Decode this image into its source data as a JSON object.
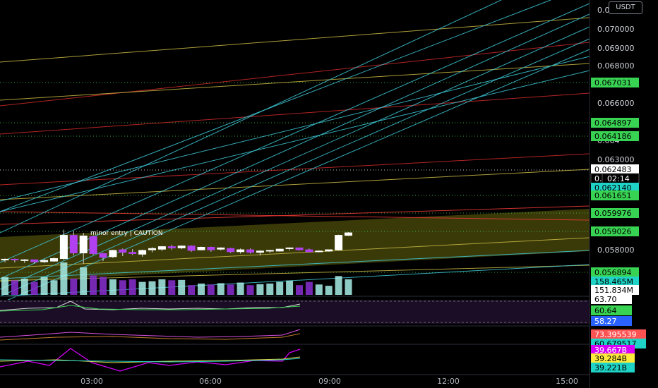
{
  "currency": "USDT",
  "annotation": "minor entry | CAUTION",
  "price_scale": {
    "ticks": [
      "0.0",
      "0.070000",
      "0.069000",
      "0.068000",
      "0.066000",
      "0.064",
      "0.063000",
      "0.058000"
    ],
    "badges": [
      {
        "label": "0.067031",
        "bg": "#39d353",
        "fg": "#000"
      },
      {
        "label": "0.064897",
        "bg": "#39d353",
        "fg": "#000"
      },
      {
        "label": "0.064186",
        "bg": "#39d353",
        "fg": "#000"
      },
      {
        "label": "0.062483",
        "bg": "#ffffff",
        "fg": "#000"
      },
      {
        "label": "0.0",
        "bg": "#000000",
        "fg": "#ffffff"
      },
      {
        "label": "02:14",
        "bg": "#000000",
        "fg": "#ffffff"
      },
      {
        "label": "0.062140",
        "bg": "#1fd3c6",
        "fg": "#000"
      },
      {
        "label": "0.061651",
        "bg": "#39d353",
        "fg": "#000"
      },
      {
        "label": "0.059976",
        "bg": "#39d353",
        "fg": "#000"
      },
      {
        "label": "0.059026",
        "bg": "#39d353",
        "fg": "#000"
      },
      {
        "label": "0.056894",
        "bg": "#39d353",
        "fg": "#000"
      },
      {
        "label": "158.465M",
        "bg": "#1fd3c6",
        "fg": "#000"
      },
      {
        "label": "151.834M",
        "bg": "#ffffff",
        "fg": "#000"
      }
    ]
  },
  "rsi_scale": [
    {
      "label": "63.70",
      "bg": "#ffffff",
      "fg": "#000"
    },
    {
      "label": "60.64",
      "bg": "#39d353",
      "fg": "#000"
    },
    {
      "label": "58.27",
      "bg": "#2962ff",
      "fg": "#fff"
    }
  ],
  "stoch_scale": [
    {
      "label": "73.395539",
      "bg": "#ff5252",
      "fg": "#fff"
    },
    {
      "label": "60.679517",
      "bg": "#1fd3c6",
      "fg": "#000"
    }
  ],
  "lower_scale": [
    {
      "label": "39.667B",
      "bg": "#d500f9",
      "fg": "#fff"
    },
    {
      "label": "39.284B",
      "bg": "#ffeb3b",
      "fg": "#000"
    },
    {
      "label": "39.221B",
      "bg": "#1fd3c6",
      "fg": "#000"
    }
  ],
  "time_axis": [
    "03:00",
    "06:00",
    "09:00",
    "12:00",
    "15:00"
  ],
  "candles": [
    {
      "o": 0.0582,
      "h": 0.0584,
      "l": 0.0578,
      "c": 0.0583
    },
    {
      "o": 0.0583,
      "h": 0.0584,
      "l": 0.0578,
      "c": 0.0582
    },
    {
      "o": 0.0582,
      "h": 0.0583,
      "l": 0.0577,
      "c": 0.0582
    },
    {
      "o": 0.0582,
      "h": 0.0582,
      "l": 0.0576,
      "c": 0.0579
    },
    {
      "o": 0.0579,
      "h": 0.0583,
      "l": 0.0577,
      "c": 0.0581
    },
    {
      "o": 0.058,
      "h": 0.0586,
      "l": 0.0579,
      "c": 0.0584
    },
    {
      "o": 0.0584,
      "h": 0.063,
      "l": 0.0582,
      "c": 0.0621
    },
    {
      "o": 0.0621,
      "h": 0.0628,
      "l": 0.0589,
      "c": 0.0593
    },
    {
      "o": 0.0593,
      "h": 0.0625,
      "l": 0.0576,
      "c": 0.062
    },
    {
      "o": 0.0619,
      "h": 0.0621,
      "l": 0.059,
      "c": 0.0592
    },
    {
      "o": 0.0592,
      "h": 0.0593,
      "l": 0.058,
      "c": 0.0586
    },
    {
      "o": 0.0587,
      "h": 0.0598,
      "l": 0.0585,
      "c": 0.0597
    },
    {
      "o": 0.0598,
      "h": 0.06,
      "l": 0.0588,
      "c": 0.0594
    },
    {
      "o": 0.0594,
      "h": 0.0599,
      "l": 0.059,
      "c": 0.0592
    },
    {
      "o": 0.0591,
      "h": 0.0598,
      "l": 0.0587,
      "c": 0.0597
    },
    {
      "o": 0.0598,
      "h": 0.0602,
      "l": 0.0594,
      "c": 0.06
    },
    {
      "o": 0.0599,
      "h": 0.0604,
      "l": 0.0596,
      "c": 0.0603
    },
    {
      "o": 0.0603,
      "h": 0.0606,
      "l": 0.0598,
      "c": 0.0601
    },
    {
      "o": 0.0601,
      "h": 0.0605,
      "l": 0.0599,
      "c": 0.0604
    },
    {
      "o": 0.0604,
      "h": 0.0605,
      "l": 0.0595,
      "c": 0.0597
    },
    {
      "o": 0.0598,
      "h": 0.0603,
      "l": 0.0597,
      "c": 0.0602
    },
    {
      "o": 0.0602,
      "h": 0.0603,
      "l": 0.0595,
      "c": 0.0598
    },
    {
      "o": 0.0599,
      "h": 0.0602,
      "l": 0.0597,
      "c": 0.0601
    },
    {
      "o": 0.06,
      "h": 0.0601,
      "l": 0.0593,
      "c": 0.0595
    },
    {
      "o": 0.0595,
      "h": 0.06,
      "l": 0.0592,
      "c": 0.0598
    },
    {
      "o": 0.0598,
      "h": 0.06,
      "l": 0.0592,
      "c": 0.0594
    },
    {
      "o": 0.0594,
      "h": 0.0597,
      "l": 0.0589,
      "c": 0.0596
    },
    {
      "o": 0.0596,
      "h": 0.0598,
      "l": 0.0593,
      "c": 0.0597
    },
    {
      "o": 0.0596,
      "h": 0.06,
      "l": 0.0595,
      "c": 0.0599
    },
    {
      "o": 0.06,
      "h": 0.0602,
      "l": 0.0597,
      "c": 0.0601
    },
    {
      "o": 0.0601,
      "h": 0.0601,
      "l": 0.0597,
      "c": 0.0598
    },
    {
      "o": 0.0598,
      "h": 0.06,
      "l": 0.0594,
      "c": 0.0595
    },
    {
      "o": 0.0595,
      "h": 0.0597,
      "l": 0.0594,
      "c": 0.0596
    },
    {
      "o": 0.0596,
      "h": 0.0598,
      "l": 0.0595,
      "c": 0.0598
    },
    {
      "o": 0.0598,
      "h": 0.0622,
      "l": 0.0597,
      "c": 0.0621
    },
    {
      "o": 0.0621,
      "h": 0.0626,
      "l": 0.062,
      "c": 0.0625
    }
  ],
  "volumes": [
    0.55,
    0.45,
    0.5,
    0.4,
    0.55,
    0.45,
    1.0,
    0.5,
    0.85,
    0.6,
    0.55,
    0.48,
    0.45,
    0.48,
    0.4,
    0.42,
    0.48,
    0.45,
    0.46,
    0.3,
    0.35,
    0.32,
    0.36,
    0.32,
    0.38,
    0.3,
    0.33,
    0.35,
    0.4,
    0.44,
    0.3,
    0.4,
    0.32,
    0.28,
    0.58,
    0.48
  ],
  "colors": {
    "up": "#ffffff",
    "down": "#b040f0",
    "wick": "#d8d8d8"
  }
}
